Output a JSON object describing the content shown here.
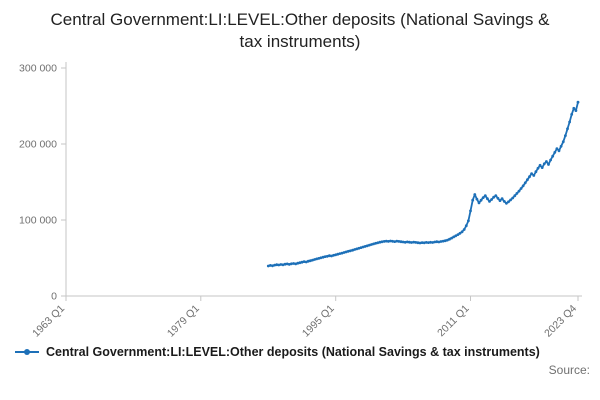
{
  "title": "Central Government:LI:LEVEL:Other deposits (National Savings & tax instruments)",
  "legend": {
    "label": "Central Government:LI:LEVEL:Other deposits (National Savings & tax instruments)"
  },
  "source_label": "Source:",
  "chart_data": {
    "type": "line",
    "title": "Central Government:LI:LEVEL:Other deposits (National Savings & tax instruments)",
    "xlabel": "",
    "ylabel": "",
    "ylim": [
      0,
      300000
    ],
    "grid": false,
    "legend_position": "bottom-left",
    "line_color": "#1d70b8",
    "axis_color": "#c6c6c6",
    "tick_label_color": "#707070",
    "yticks": [
      {
        "value": 0,
        "label": "0"
      },
      {
        "value": 100000,
        "label": "100 000"
      },
      {
        "value": 200000,
        "label": "200 000"
      },
      {
        "value": 300000,
        "label": "300 000"
      }
    ],
    "x_total_quarters": 244,
    "xticks": [
      {
        "q": 0,
        "label": "1963 Q1"
      },
      {
        "q": 64,
        "label": "1979 Q1"
      },
      {
        "q": 128,
        "label": "1995 Q1"
      },
      {
        "q": 192,
        "label": "2011 Q1"
      },
      {
        "q": 243,
        "label": "2023 Q4"
      }
    ],
    "series": [
      {
        "name": "Central Government:LI:LEVEL:Other deposits (National Savings & tax instruments)",
        "frequency": "quarterly",
        "start_period": "1987 Q1",
        "end_period": "2023 Q4",
        "start_quarter_index": 96,
        "values": [
          39500,
          40300,
          39800,
          40600,
          41200,
          40800,
          41500,
          41000,
          41800,
          42200,
          41600,
          42400,
          42800,
          42300,
          43200,
          43800,
          44500,
          45200,
          44800,
          45800,
          46500,
          47200,
          48000,
          48800,
          49500,
          50300,
          51000,
          51800,
          52300,
          53000,
          52600,
          53500,
          54200,
          55000,
          55800,
          56500,
          57300,
          58000,
          58800,
          59500,
          60300,
          61200,
          62000,
          62800,
          63700,
          64500,
          65300,
          66000,
          67000,
          67800,
          68500,
          69300,
          70000,
          70800,
          71300,
          71800,
          72200,
          71800,
          72400,
          72000,
          71600,
          72200,
          71800,
          71400,
          71000,
          70600,
          71200,
          70800,
          70400,
          70900,
          70500,
          70100,
          69800,
          70300,
          70000,
          70500,
          70200,
          70700,
          70400,
          71000,
          71500,
          71100,
          71700,
          72200,
          72800,
          73600,
          74800,
          76200,
          77800,
          79200,
          80800,
          82500,
          84500,
          87500,
          92500,
          99000,
          112000,
          126000,
          133500,
          127500,
          122500,
          126000,
          129500,
          132000,
          128000,
          124500,
          127000,
          130000,
          132000,
          128500,
          125500,
          128000,
          124500,
          122000,
          124000,
          126500,
          129000,
          132000,
          135000,
          138000,
          141500,
          145000,
          149000,
          153000,
          157000,
          161000,
          158500,
          163500,
          168000,
          172000,
          169000,
          174000,
          177000,
          173000,
          179000,
          184000,
          189000,
          194000,
          191000,
          197000,
          203000,
          211000,
          220000,
          229000,
          239000,
          247000,
          244000,
          255000
        ]
      }
    ]
  }
}
